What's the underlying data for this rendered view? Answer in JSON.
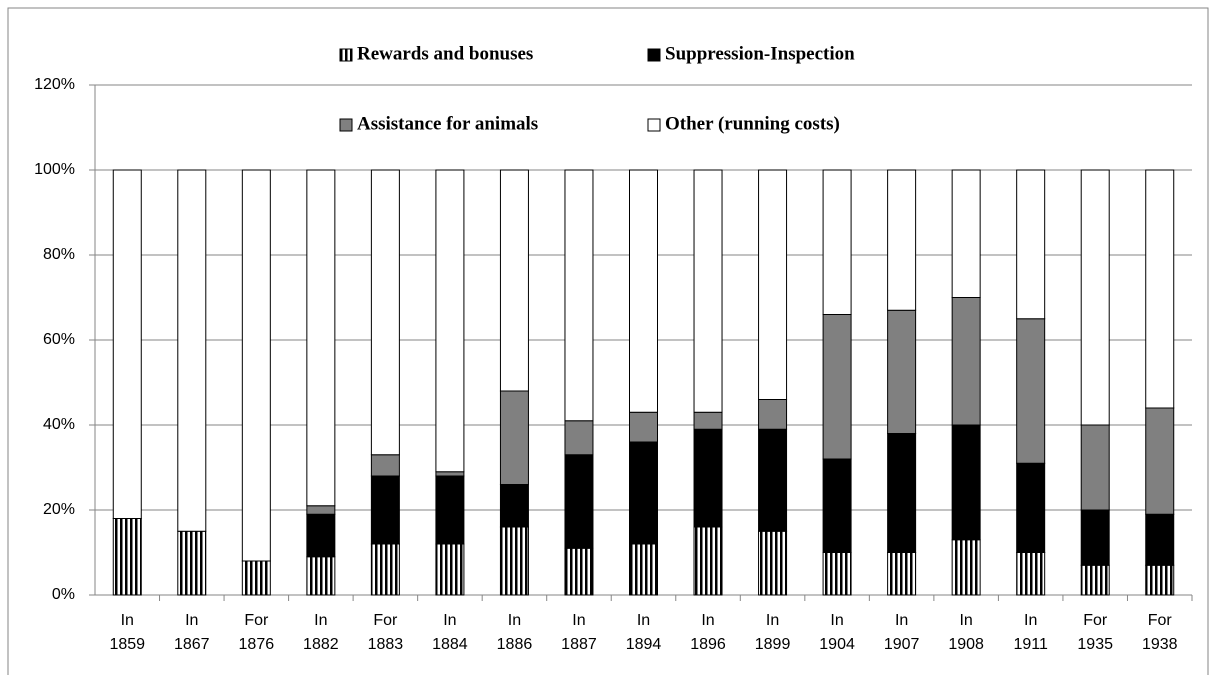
{
  "chart_data": {
    "type": "stacked_bar",
    "categories": [
      "In 1859",
      "In 1867",
      "For 1876",
      "In 1882",
      "For 1883",
      "In 1884",
      "In 1886",
      "In 1887",
      "In 1894",
      "In 1896",
      "In 1899",
      "In 1904",
      "In 1907",
      "In 1908",
      "In 1911",
      "For 1935",
      "For 1938"
    ],
    "series": [
      {
        "name": "Rewards and bonuses",
        "color": "#000000",
        "pattern": "vertical-stripes",
        "values": [
          18,
          15,
          8,
          9,
          12,
          12,
          16,
          11,
          12,
          16,
          15,
          10,
          10,
          13,
          10,
          7,
          7
        ]
      },
      {
        "name": "Suppression-Inspection",
        "color": "#000000",
        "values": [
          0,
          0,
          0,
          10,
          16,
          16,
          10,
          22,
          24,
          23,
          24,
          22,
          28,
          27,
          21,
          13,
          12
        ]
      },
      {
        "name": "Assistance for animals",
        "color": "#808080",
        "values": [
          0,
          0,
          0,
          2,
          5,
          1,
          22,
          8,
          7,
          4,
          7,
          34,
          29,
          30,
          34,
          20,
          25
        ]
      },
      {
        "name": "Other (running costs)",
        "color": "#ffffff",
        "values": [
          82,
          85,
          92,
          79,
          67,
          71,
          52,
          59,
          57,
          57,
          54,
          34,
          33,
          30,
          35,
          60,
          56
        ]
      }
    ],
    "ylim": [
      0,
      120
    ],
    "yticks": [
      {
        "value": 0,
        "label": "0%"
      },
      {
        "value": 20,
        "label": "20%"
      },
      {
        "value": 40,
        "label": "40%"
      },
      {
        "value": 60,
        "label": "60%"
      },
      {
        "value": 80,
        "label": "80%"
      },
      {
        "value": 100,
        "label": "100%"
      },
      {
        "value": 120,
        "label": "120%"
      }
    ],
    "grid": true,
    "legend": "top"
  }
}
